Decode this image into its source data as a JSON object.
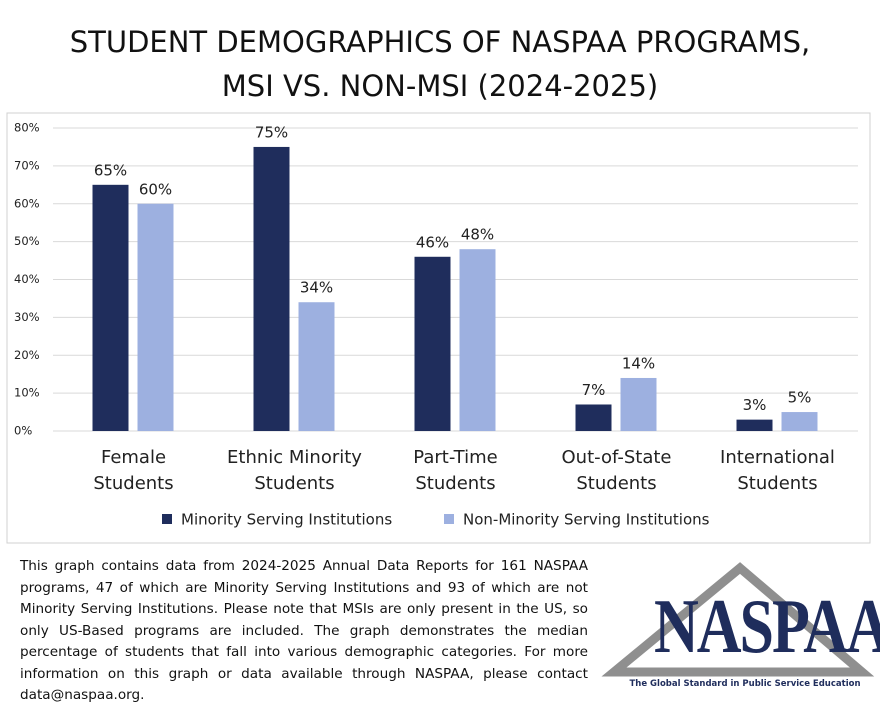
{
  "chart_data": {
    "type": "bar",
    "title": "STUDENT DEMOGRAPHICS OF NASPAA PROGRAMS, MSI VS. NON-MSI (2024-2025)",
    "categories": [
      "Female Students",
      "Ethnic Minority Students",
      "Part-Time Students",
      "Out-of-State Students",
      "International Students"
    ],
    "series": [
      {
        "name": "Minority Serving Institutions",
        "color": "#1f2d5c",
        "values": [
          65,
          75,
          46,
          7,
          3
        ],
        "value_labels": [
          "65%",
          "75%",
          "46%",
          "7%",
          "3%"
        ]
      },
      {
        "name": "Non-Minority Serving Institutions",
        "color": "#9db0e0",
        "values": [
          60,
          34,
          48,
          14,
          5
        ],
        "value_labels": [
          "60%",
          "34%",
          "48%",
          "14%",
          "5%"
        ]
      }
    ],
    "ylim": [
      0,
      80
    ],
    "yticks": [
      {
        "value": 0,
        "label": "0%"
      },
      {
        "value": 10,
        "label": "10%"
      },
      {
        "value": 20,
        "label": "20%"
      },
      {
        "value": 30,
        "label": "30%"
      },
      {
        "value": 40,
        "label": "40%"
      },
      {
        "value": 50,
        "label": "50%"
      },
      {
        "value": 60,
        "label": "60%"
      },
      {
        "value": 70,
        "label": "70%"
      },
      {
        "value": 80,
        "label": "80%"
      }
    ],
    "grid": true,
    "legend": "bottom"
  },
  "note": "This graph contains data from 2024-2025 Annual Data Reports for 161 NASPAA programs, 47 of which are Minority Serving Institutions and 93 of which are not Minority Serving Institutions. Please note that MSIs are only present in the US, so only US-Based programs are included. The graph demonstrates the median percentage of students that fall into various demographic categories. For more information on this graph or data available through NASPAA, please contact data@naspaa.org.",
  "logo": {
    "text": "NASPAA",
    "tagline": "The Global Standard in Public Service Education"
  }
}
